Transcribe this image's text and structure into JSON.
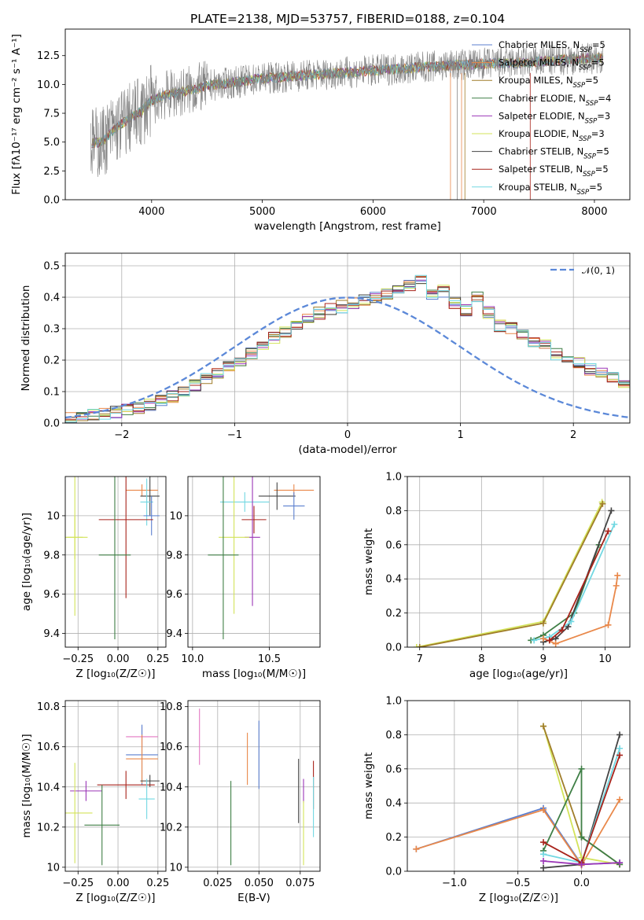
{
  "colors": {
    "chabrier_miles": "#5b7fcf",
    "salpeter_miles": "#e9884a",
    "kroupa_miles": "#a07d2a",
    "chabrier_elodie": "#3f7f46",
    "salpeter_elodie": "#9b36b7",
    "kroupa_elodie": "#d3e35a",
    "chabrier_stelib": "#444444",
    "salpeter_stelib": "#a8231b",
    "kroupa_stelib": "#72d8e2",
    "gaussian": "#5b88d8",
    "grid": "#b0b0b0"
  },
  "chart_data": [
    {
      "id": "spectrum",
      "type": "line",
      "title": "PLATE=2138, MJD=53757, FIBERID=0188, z=0.104",
      "xlabel": "wavelength [Angstrom, rest frame]",
      "ylabel": "Flux [fλ10⁻¹⁷ erg cm⁻² s⁻¹ A⁻¹]",
      "xlim": [
        3220,
        8320
      ],
      "ylim": [
        0,
        14.8
      ],
      "xticks": [
        4000,
        5000,
        6000,
        7000,
        8000
      ],
      "yticks": [
        "0.0",
        "2.5",
        "5.0",
        "7.5",
        "10.0",
        "12.5"
      ],
      "grid": false,
      "legend_position": "right",
      "legend": [
        {
          "label": "Chabrier MILES, N",
          "sub": "SSP",
          "val": "=5",
          "color": "#5b7fcf"
        },
        {
          "label": "Salpeter MILES, N",
          "sub": "SSP",
          "val": "=5",
          "color": "#e9884a"
        },
        {
          "label": "Kroupa MILES, N",
          "sub": "SSP",
          "val": "=5",
          "color": "#a07d2a"
        },
        {
          "label": "Chabrier ELODIE, N",
          "sub": "SSP",
          "val": "=4",
          "color": "#3f7f46"
        },
        {
          "label": "Salpeter ELODIE, N",
          "sub": "SSP",
          "val": "=3",
          "color": "#9b36b7"
        },
        {
          "label": "Kroupa ELODIE, N",
          "sub": "SSP",
          "val": "=3",
          "color": "#d3e35a"
        },
        {
          "label": "Chabrier STELIB, N",
          "sub": "SSP",
          "val": "=5",
          "color": "#444444"
        },
        {
          "label": "Salpeter STELIB, N",
          "sub": "SSP",
          "val": "=5",
          "color": "#a8231b"
        },
        {
          "label": "Kroupa STELIB, N",
          "sub": "SSP",
          "val": "=5",
          "color": "#72d8e2"
        }
      ],
      "continuum": [
        [
          3450,
          4.9
        ],
        [
          3550,
          5.0
        ],
        [
          3650,
          6.0
        ],
        [
          3760,
          6.8
        ],
        [
          3900,
          7.6
        ],
        [
          4000,
          8.6
        ],
        [
          4100,
          9.0
        ],
        [
          4300,
          9.4
        ],
        [
          4500,
          9.9
        ],
        [
          4700,
          10.1
        ],
        [
          4900,
          10.4
        ],
        [
          5100,
          10.6
        ],
        [
          5400,
          10.8
        ],
        [
          5700,
          11.0
        ],
        [
          6000,
          11.2
        ],
        [
          6300,
          11.4
        ],
        [
          6600,
          11.6
        ],
        [
          7000,
          11.8
        ],
        [
          7400,
          11.9
        ],
        [
          7800,
          12.2
        ],
        [
          8080,
          12.3
        ]
      ]
    },
    {
      "id": "residuals",
      "type": "histogram",
      "xlabel": "(data-model)/error",
      "ylabel": "Normed distribution",
      "xlim": [
        -2.5,
        2.5
      ],
      "ylim": [
        0,
        0.54
      ],
      "xticks": [
        -2,
        -1,
        0,
        1,
        2
      ],
      "xtick_labels": [
        "−2",
        "−1",
        "0",
        "1",
        "2"
      ],
      "yticks": [
        "0.0",
        "0.1",
        "0.2",
        "0.3",
        "0.4",
        "0.5"
      ],
      "grid": true,
      "legend_position": "top-right",
      "legend": [
        {
          "label": "𝒩(0, 1)",
          "color": "#5b88d8",
          "style": "dashed"
        }
      ],
      "bin_edges_start": -2.5,
      "bin_width": 0.1,
      "base_values": [
        0.015,
        0.02,
        0.025,
        0.03,
        0.035,
        0.045,
        0.05,
        0.06,
        0.07,
        0.085,
        0.1,
        0.12,
        0.14,
        0.16,
        0.18,
        0.2,
        0.22,
        0.245,
        0.27,
        0.29,
        0.31,
        0.33,
        0.35,
        0.36,
        0.37,
        0.38,
        0.39,
        0.4,
        0.41,
        0.43,
        0.44,
        0.45,
        0.41,
        0.42,
        0.38,
        0.36,
        0.4,
        0.35,
        0.31,
        0.3,
        0.28,
        0.26,
        0.25,
        0.22,
        0.2,
        0.19,
        0.17,
        0.16,
        0.15,
        0.13,
        0.12,
        0.11,
        0.11,
        0.1,
        0.1,
        0.08,
        0.06,
        0.05,
        0.045,
        0.04,
        0.03,
        0.03
      ]
    },
    {
      "id": "age-vs-Z",
      "type": "errorbar",
      "xlabel": "Z [log₁₀(Z/Z☉)]",
      "ylabel": "age  [log₁₀(age/yr)]",
      "xlim": [
        -0.33,
        0.3
      ],
      "ylim": [
        9.33,
        10.2
      ],
      "xticks": [
        -0.25,
        0.0,
        0.25
      ],
      "xtick_labels": [
        "−0.25",
        "0.00",
        "0.25"
      ],
      "yticks": [
        9.4,
        9.6,
        9.8,
        10.0
      ],
      "grid": true,
      "points": [
        {
          "x": 0.15,
          "y": 10.13,
          "xerr": 0.1,
          "yerr": 0.03,
          "color": "#e9884a"
        },
        {
          "x": 0.2,
          "y": 10.1,
          "xerr": 0.06,
          "yerr": 0.1,
          "color": "#444444"
        },
        {
          "x": 0.18,
          "y": 10.07,
          "xerr": 0.04,
          "yerr": 0.12,
          "color": "#72d8e2"
        },
        {
          "x": 0.21,
          "y": 10.0,
          "xerr": 0.05,
          "yerr": 0.1,
          "color": "#5b7fcf"
        },
        {
          "x": 0.05,
          "y": 9.98,
          "xerr": 0.17,
          "yerr": 0.4,
          "color": "#a8231b"
        },
        {
          "x": -0.27,
          "y": 9.89,
          "xerr": 0.05,
          "yerr": 0.4,
          "color": "#d3e35a"
        },
        {
          "x": -0.27,
          "y": 9.89,
          "xerr": 0.08,
          "yerr": 0.11,
          "color": "#d3e35a"
        },
        {
          "x": -0.02,
          "y": 9.8,
          "xerr": 0.1,
          "yerr": 0.43,
          "color": "#3f7f46"
        }
      ]
    },
    {
      "id": "age-vs-mass",
      "type": "errorbar",
      "xlabel": "mass [log₁₀(M/M☉)]",
      "ylabel": "",
      "xlim": [
        9.97,
        10.83
      ],
      "ylim": [
        9.33,
        10.2
      ],
      "xticks": [
        10.0,
        10.5
      ],
      "xtick_labels": [
        "10.0",
        "10.5"
      ],
      "yticks": [
        9.4,
        9.6,
        9.8,
        10.0
      ],
      "grid": true,
      "points": [
        {
          "x": 10.66,
          "y": 10.13,
          "xerr": 0.13,
          "yerr": 0.03,
          "color": "#e9884a"
        },
        {
          "x": 10.55,
          "y": 10.1,
          "xerr": 0.12,
          "yerr": 0.07,
          "color": "#444444"
        },
        {
          "x": 10.34,
          "y": 10.07,
          "xerr": 0.16,
          "yerr": 0.05,
          "color": "#72d8e2"
        },
        {
          "x": 10.66,
          "y": 10.05,
          "xerr": 0.07,
          "yerr": 0.07,
          "color": "#5b7fcf"
        },
        {
          "x": 10.4,
          "y": 9.98,
          "xerr": 0.08,
          "yerr": 0.07,
          "color": "#a8231b"
        },
        {
          "x": 10.39,
          "y": 9.89,
          "xerr": 0.05,
          "yerr": 0.35,
          "color": "#9b36b7"
        },
        {
          "x": 10.27,
          "y": 9.89,
          "xerr": 0.1,
          "yerr": 0.39,
          "color": "#d3e35a"
        },
        {
          "x": 10.2,
          "y": 9.8,
          "xerr": 0.1,
          "yerr": 0.43,
          "color": "#3f7f46"
        }
      ]
    },
    {
      "id": "massweight-vs-age",
      "type": "line",
      "xlabel": "age  [log₁₀(age/yr)]",
      "ylabel": "mass weight",
      "xlim": [
        6.8,
        10.4
      ],
      "ylim": [
        0,
        1.0
      ],
      "xticks": [
        7,
        8,
        9,
        10
      ],
      "yticks": [
        "0.0",
        "0.2",
        "0.4",
        "0.6",
        "0.8",
        "1.0"
      ],
      "grid": true,
      "series": [
        {
          "color": "#d3e35a",
          "points": [
            [
              6.95,
              0.0
            ],
            [
              9.0,
              0.15
            ],
            [
              9.95,
              0.85
            ]
          ]
        },
        {
          "color": "#a07d2a",
          "points": [
            [
              7.0,
              0.0
            ],
            [
              9.0,
              0.14
            ],
            [
              9.96,
              0.84
            ]
          ]
        },
        {
          "color": "#3f7f46",
          "points": [
            [
              8.8,
              0.04
            ],
            [
              9.0,
              0.07
            ],
            [
              9.5,
              0.2
            ],
            [
              9.9,
              0.6
            ]
          ]
        },
        {
          "color": "#444444",
          "points": [
            [
              9.0,
              0.03
            ],
            [
              9.2,
              0.05
            ],
            [
              9.4,
              0.12
            ],
            [
              10.1,
              0.8
            ]
          ]
        },
        {
          "color": "#72d8e2",
          "points": [
            [
              8.85,
              0.04
            ],
            [
              9.1,
              0.06
            ],
            [
              9.45,
              0.15
            ],
            [
              10.15,
              0.72
            ]
          ]
        },
        {
          "color": "#e9884a",
          "points": [
            [
              9.0,
              0.05
            ],
            [
              9.2,
              0.02
            ],
            [
              10.05,
              0.13
            ],
            [
              10.18,
              0.36
            ],
            [
              10.2,
              0.42
            ]
          ]
        },
        {
          "color": "#a8231b",
          "points": [
            [
              9.1,
              0.04
            ],
            [
              9.3,
              0.1
            ],
            [
              10.05,
              0.68
            ]
          ]
        }
      ]
    },
    {
      "id": "mass-vs-Z",
      "type": "errorbar",
      "xlabel": "Z [log₁₀(Z/Z☉)]",
      "ylabel": "mass [log₁₀(M/M☉)]",
      "xlim": [
        -0.33,
        0.3
      ],
      "ylim": [
        9.98,
        10.83
      ],
      "xticks": [
        -0.25,
        0.0,
        0.25
      ],
      "xtick_labels": [
        "−0.25",
        "0.00",
        "0.25"
      ],
      "yticks": [
        10.0,
        10.2,
        10.4,
        10.6,
        10.8
      ],
      "grid": true,
      "points": [
        {
          "x": 0.15,
          "y": 10.65,
          "xerr": 0.1,
          "yerr": 0.05,
          "color": "#e377c2"
        },
        {
          "x": 0.15,
          "y": 10.56,
          "xerr": 0.1,
          "yerr": 0.15,
          "color": "#5b7fcf"
        },
        {
          "x": 0.15,
          "y": 10.54,
          "xerr": 0.1,
          "yerr": 0.12,
          "color": "#e9884a"
        },
        {
          "x": 0.2,
          "y": 10.43,
          "xerr": 0.06,
          "yerr": 0.03,
          "color": "#444444"
        },
        {
          "x": 0.05,
          "y": 10.41,
          "xerr": 0.18,
          "yerr": 0.07,
          "color": "#a8231b"
        },
        {
          "x": -0.2,
          "y": 10.38,
          "xerr": 0.1,
          "yerr": 0.05,
          "color": "#9b36b7"
        },
        {
          "x": 0.18,
          "y": 10.34,
          "xerr": 0.05,
          "yerr": 0.1,
          "color": "#72d8e2"
        },
        {
          "x": -0.27,
          "y": 10.27,
          "xerr": 0.11,
          "yerr": 0.25,
          "color": "#d3e35a"
        },
        {
          "x": -0.1,
          "y": 10.21,
          "xerr": 0.11,
          "yerr": 0.2,
          "color": "#3f7f46"
        }
      ]
    },
    {
      "id": "mass-vs-EBV",
      "type": "errorbar",
      "xlabel": "E(B-V)",
      "ylabel": "",
      "xlim": [
        0.007,
        0.087
      ],
      "ylim": [
        9.98,
        10.83
      ],
      "xticks": [
        0.025,
        0.05,
        0.075
      ],
      "xtick_labels": [
        "0.025",
        "0.050",
        "0.075"
      ],
      "yticks": [
        10.0,
        10.2,
        10.4,
        10.6,
        10.8
      ],
      "grid": true,
      "points": [
        {
          "x": 0.014,
          "y": 10.65,
          "xerr": 0,
          "yerr": 0.14,
          "color": "#e377c2"
        },
        {
          "x": 0.05,
          "y": 10.56,
          "xerr": 0,
          "yerr": 0.17,
          "color": "#5b7fcf"
        },
        {
          "x": 0.043,
          "y": 10.54,
          "xerr": 0,
          "yerr": 0.13,
          "color": "#e9884a"
        },
        {
          "x": 0.074,
          "y": 10.38,
          "xerr": 0,
          "yerr": 0.16,
          "color": "#444444"
        },
        {
          "x": 0.083,
          "y": 10.41,
          "xerr": 0,
          "yerr": 0.12,
          "color": "#a8231b"
        },
        {
          "x": 0.077,
          "y": 10.38,
          "xerr": 0,
          "yerr": 0.06,
          "color": "#9b36b7"
        },
        {
          "x": 0.083,
          "y": 10.3,
          "xerr": 0,
          "yerr": 0.15,
          "color": "#72d8e2"
        },
        {
          "x": 0.077,
          "y": 10.17,
          "xerr": 0,
          "yerr": 0.16,
          "color": "#d3e35a"
        },
        {
          "x": 0.033,
          "y": 10.22,
          "xerr": 0,
          "yerr": 0.21,
          "color": "#3f7f46"
        }
      ]
    },
    {
      "id": "massweight-vs-Z",
      "type": "line",
      "xlabel": "Z [log₁₀(Z/Z☉)]",
      "ylabel": "mass weight",
      "xlim": [
        -1.37,
        0.38
      ],
      "ylim": [
        0,
        1.0
      ],
      "xticks": [
        -1.0,
        -0.5,
        0.0
      ],
      "xtick_labels": [
        "−1.0",
        "−0.5",
        "0.0"
      ],
      "yticks": [
        "0.0",
        "0.2",
        "0.4",
        "0.6",
        "0.8",
        "1.0"
      ],
      "grid": true,
      "series": [
        {
          "color": "#5b7fcf",
          "points": [
            [
              -1.3,
              0.13
            ],
            [
              -0.3,
              0.37
            ],
            [
              0.0,
              0.04
            ],
            [
              0.3,
              0.05
            ]
          ]
        },
        {
          "color": "#e9884a",
          "points": [
            [
              -1.3,
              0.13
            ],
            [
              -0.3,
              0.36
            ],
            [
              0.0,
              0.035
            ],
            [
              0.3,
              0.42
            ]
          ]
        },
        {
          "color": "#d3e35a",
          "points": [
            [
              -0.3,
              0.85
            ],
            [
              0.0,
              0.08
            ],
            [
              0.3,
              0.04
            ]
          ]
        },
        {
          "color": "#a07d2a",
          "points": [
            [
              -0.3,
              0.85
            ],
            [
              0.0,
              0.2
            ],
            [
              0.3,
              0.04
            ]
          ]
        },
        {
          "color": "#3f7f46",
          "points": [
            [
              -0.3,
              0.12
            ],
            [
              0.0,
              0.6
            ],
            [
              0.0,
              0.2
            ],
            [
              0.3,
              0.04
            ]
          ]
        },
        {
          "color": "#444444",
          "points": [
            [
              -0.3,
              0.02
            ],
            [
              0.0,
              0.04
            ],
            [
              0.3,
              0.8
            ]
          ]
        },
        {
          "color": "#72d8e2",
          "points": [
            [
              -0.3,
              0.1
            ],
            [
              0.0,
              0.05
            ],
            [
              0.3,
              0.72
            ]
          ]
        },
        {
          "color": "#a8231b",
          "points": [
            [
              -0.3,
              0.17
            ],
            [
              0.0,
              0.05
            ],
            [
              0.3,
              0.68
            ]
          ]
        },
        {
          "color": "#9b36b7",
          "points": [
            [
              -0.3,
              0.06
            ],
            [
              0.0,
              0.04
            ],
            [
              0.3,
              0.05
            ]
          ]
        }
      ]
    }
  ]
}
